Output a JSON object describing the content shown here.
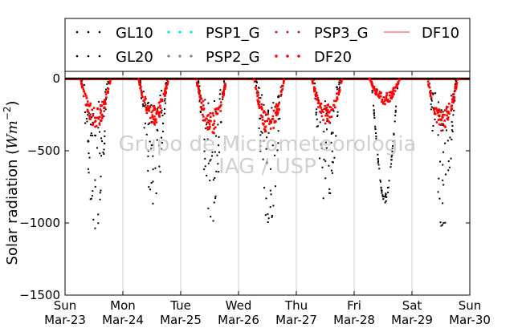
{
  "chart_data": {
    "type": "scatter",
    "ylabel": "Solar radiation (W m⁻²)",
    "ylabel_plain": "Solar radiation (",
    "ylabel_unit_main": "Wm",
    "ylabel_unit_exp": "−2",
    "ylabel_close": ")",
    "ylim": [
      -1500,
      50
    ],
    "yticks": [
      0,
      -500,
      -1000,
      -1500
    ],
    "ytick_labels": [
      "0",
      "−500",
      "−1000",
      "−1500"
    ],
    "xlim": [
      0,
      7
    ],
    "xticks": [
      {
        "pos": 0,
        "day": "Sun",
        "date": "Mar-23"
      },
      {
        "pos": 1,
        "day": "Mon",
        "date": "Mar-24"
      },
      {
        "pos": 2,
        "day": "Tue",
        "date": "Mar-25"
      },
      {
        "pos": 3,
        "day": "Wed",
        "date": "Mar-26"
      },
      {
        "pos": 4,
        "day": "Thu",
        "date": "Mar-27"
      },
      {
        "pos": 5,
        "day": "Fri",
        "date": "Mar-28"
      },
      {
        "pos": 6,
        "day": "Sat",
        "date": "Mar-29"
      },
      {
        "pos": 7,
        "day": "Sun",
        "date": "Mar-30"
      }
    ],
    "grid": "vertical",
    "legend_placement": "top",
    "watermark": [
      "Grupo de Micrometeorologia",
      "IAG / USP"
    ],
    "series": [
      {
        "name": "GL10",
        "color": "#000000",
        "marker": "dot",
        "role": "global"
      },
      {
        "name": "GL20",
        "color": "#000000",
        "marker": "dot",
        "role": "global"
      },
      {
        "name": "PSP1_G",
        "color": "#00e5e5",
        "marker": "dot",
        "role": "none"
      },
      {
        "name": "PSP2_G",
        "color": "#808080",
        "marker": "dot",
        "role": "none"
      },
      {
        "name": "PSP3_G",
        "color": "#e00000",
        "marker": "dot",
        "role": "diffuse"
      },
      {
        "name": "DF20",
        "color": "#ff0000",
        "marker": "dot",
        "role": "diffuse"
      },
      {
        "name": "DF10",
        "color": "#ff6060",
        "marker": "line",
        "role": "diffuse"
      }
    ],
    "daily_peaks": [
      {
        "day": 0,
        "global_peak": 1070,
        "diffuse_peak": 330
      },
      {
        "day": 1,
        "global_peak": 980,
        "diffuse_peak": 310
      },
      {
        "day": 2,
        "global_peak": 1030,
        "diffuse_peak": 380
      },
      {
        "day": 3,
        "global_peak": 1040,
        "diffuse_peak": 390
      },
      {
        "day": 4,
        "global_peak": 930,
        "diffuse_peak": 300
      },
      {
        "day": 5,
        "global_peak": 860,
        "diffuse_peak": 170
      },
      {
        "day": 6,
        "global_peak": 1060,
        "diffuse_peak": 350
      }
    ]
  }
}
